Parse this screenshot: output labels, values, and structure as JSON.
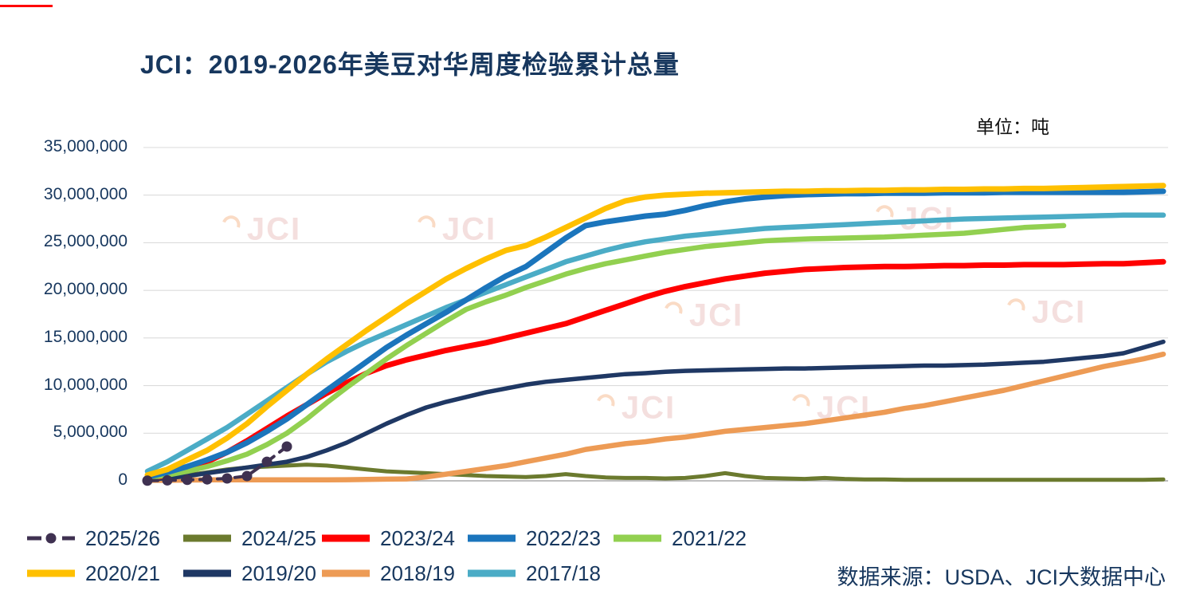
{
  "page": {
    "top_accent_color": "#FF0000"
  },
  "chart_data": {
    "type": "line",
    "title": "JCI：2019-2026年美豆对华周度检验累计总量",
    "unit_label": "单位：吨",
    "source_note": "数据来源：USDA、JCI大数据中心",
    "watermark_text": "JCI",
    "xlabel": "",
    "ylabel": "吨",
    "x_description": "marketing-year week index 1-52 (x tick labels not shown in image)",
    "xticks_visible": false,
    "ylim": [
      0,
      35000000
    ],
    "ytick_step": 5000000,
    "ytick_labels": [
      "0",
      "5,000,000",
      "10,000,000",
      "15,000,000",
      "20,000,000",
      "25,000,000",
      "30,000,000",
      "35,000,000"
    ],
    "grid": true,
    "legend_position": "bottom",
    "value_unit": "tons",
    "value_multiplier": 1000000,
    "legend_rows": [
      [
        "2025/26",
        "2024/25",
        "2023/24",
        "2022/23",
        "2021/22"
      ],
      [
        "2020/21",
        "2019/20",
        "2018/19",
        "2017/18"
      ]
    ],
    "draw_order": [
      "2024/25",
      "2018/19",
      "2019/20",
      "2023/24",
      "2021/22",
      "2017/18",
      "2022/23",
      "2020/21",
      "2025/26"
    ],
    "series": [
      {
        "name": "2025/26",
        "color": "#3F3151",
        "width": 4,
        "dash": true,
        "marker": true,
        "values": [
          0.02,
          0.05,
          0.1,
          0.15,
          0.25,
          0.5,
          2.0,
          3.6
        ]
      },
      {
        "name": "2024/25",
        "color": "#6B7A2E",
        "width": 5,
        "dash": false,
        "marker": false,
        "values": [
          0.1,
          0.3,
          0.6,
          0.9,
          1.2,
          1.4,
          1.5,
          1.6,
          1.7,
          1.6,
          1.4,
          1.2,
          1.0,
          0.9,
          0.8,
          0.7,
          0.6,
          0.5,
          0.45,
          0.4,
          0.5,
          0.7,
          0.5,
          0.35,
          0.3,
          0.3,
          0.25,
          0.3,
          0.5,
          0.8,
          0.5,
          0.3,
          0.25,
          0.2,
          0.3,
          0.2,
          0.15,
          0.15,
          0.1,
          0.1,
          0.1,
          0.1,
          0.1,
          0.1,
          0.1,
          0.1,
          0.1,
          0.1,
          0.1,
          0.1,
          0.1,
          0.15
        ]
      },
      {
        "name": "2023/24",
        "color": "#FF0000",
        "width": 7,
        "dash": false,
        "marker": false,
        "values": [
          0.2,
          0.6,
          1.2,
          2.0,
          3.0,
          4.2,
          5.5,
          6.8,
          8.0,
          9.2,
          10.3,
          11.3,
          12.1,
          12.7,
          13.2,
          13.7,
          14.1,
          14.5,
          15.0,
          15.5,
          16.0,
          16.5,
          17.2,
          17.9,
          18.6,
          19.3,
          19.9,
          20.4,
          20.8,
          21.2,
          21.5,
          21.8,
          22.0,
          22.2,
          22.3,
          22.4,
          22.45,
          22.5,
          22.5,
          22.55,
          22.6,
          22.6,
          22.65,
          22.65,
          22.7,
          22.7,
          22.7,
          22.75,
          22.8,
          22.8,
          22.9,
          23.0
        ]
      },
      {
        "name": "2022/23",
        "color": "#1B75BC",
        "width": 7,
        "dash": false,
        "marker": false,
        "values": [
          0.4,
          0.9,
          1.5,
          2.2,
          3.0,
          4.0,
          5.2,
          6.5,
          8.0,
          9.5,
          11.0,
          12.5,
          14.0,
          15.3,
          16.5,
          17.7,
          19.0,
          20.3,
          21.5,
          22.5,
          24.0,
          25.5,
          26.8,
          27.2,
          27.5,
          27.8,
          28.0,
          28.4,
          28.9,
          29.3,
          29.6,
          29.8,
          29.95,
          30.05,
          30.1,
          30.15,
          30.15,
          30.2,
          30.2,
          30.2,
          30.25,
          30.25,
          30.25,
          30.3,
          30.3,
          30.3,
          30.3,
          30.3,
          30.3,
          30.3,
          30.35,
          30.4
        ]
      },
      {
        "name": "2021/22",
        "color": "#92D050",
        "width": 6.5,
        "dash": false,
        "marker": false,
        "values": [
          0.3,
          0.6,
          1.0,
          1.5,
          2.1,
          2.8,
          3.8,
          5.0,
          6.5,
          8.2,
          9.8,
          11.3,
          12.8,
          14.2,
          15.5,
          16.8,
          18.0,
          18.8,
          19.5,
          20.3,
          21.0,
          21.7,
          22.3,
          22.8,
          23.2,
          23.6,
          24.0,
          24.3,
          24.6,
          24.8,
          25.0,
          25.2,
          25.3,
          25.4,
          25.45,
          25.5,
          25.55,
          25.6,
          25.7,
          25.8,
          25.9,
          26.0,
          26.2,
          26.4,
          26.6,
          26.7,
          26.8
        ]
      },
      {
        "name": "2020/21",
        "color": "#FFC000",
        "width": 7,
        "dash": false,
        "marker": false,
        "values": [
          0.6,
          1.2,
          2.2,
          3.2,
          4.5,
          6.0,
          7.8,
          9.5,
          11.2,
          12.8,
          14.3,
          15.8,
          17.2,
          18.6,
          19.9,
          21.2,
          22.3,
          23.3,
          24.2,
          24.7,
          25.6,
          26.6,
          27.6,
          28.6,
          29.4,
          29.8,
          30.0,
          30.1,
          30.2,
          30.25,
          30.3,
          30.35,
          30.4,
          30.4,
          30.45,
          30.45,
          30.5,
          30.5,
          30.55,
          30.55,
          30.6,
          30.6,
          30.65,
          30.65,
          30.7,
          30.7,
          30.75,
          30.8,
          30.85,
          30.9,
          30.95,
          31.0
        ]
      },
      {
        "name": "2019/20",
        "color": "#1F3864",
        "width": 5.5,
        "dash": false,
        "marker": false,
        "values": [
          0.1,
          0.3,
          0.5,
          0.8,
          1.1,
          1.4,
          1.7,
          2.0,
          2.5,
          3.2,
          4.0,
          5.0,
          6.0,
          6.9,
          7.7,
          8.3,
          8.8,
          9.3,
          9.7,
          10.1,
          10.4,
          10.6,
          10.8,
          11.0,
          11.2,
          11.3,
          11.45,
          11.55,
          11.6,
          11.65,
          11.7,
          11.75,
          11.8,
          11.8,
          11.85,
          11.9,
          11.95,
          12.0,
          12.05,
          12.1,
          12.1,
          12.15,
          12.2,
          12.3,
          12.4,
          12.5,
          12.7,
          12.9,
          13.1,
          13.4,
          14.0,
          14.6
        ]
      },
      {
        "name": "2018/19",
        "color": "#ED9B55",
        "width": 6.5,
        "dash": false,
        "marker": false,
        "values": [
          0.05,
          0.05,
          0.08,
          0.1,
          0.1,
          0.1,
          0.1,
          0.1,
          0.1,
          0.1,
          0.12,
          0.15,
          0.18,
          0.2,
          0.4,
          0.7,
          1.0,
          1.3,
          1.6,
          2.0,
          2.4,
          2.8,
          3.3,
          3.6,
          3.9,
          4.1,
          4.4,
          4.6,
          4.9,
          5.2,
          5.4,
          5.6,
          5.8,
          6.0,
          6.3,
          6.6,
          6.9,
          7.2,
          7.6,
          7.9,
          8.3,
          8.7,
          9.1,
          9.5,
          10.0,
          10.5,
          11.0,
          11.5,
          12.0,
          12.4,
          12.8,
          13.3
        ]
      },
      {
        "name": "2017/18",
        "color": "#4BACC6",
        "width": 6.5,
        "dash": false,
        "marker": false,
        "values": [
          1.0,
          2.0,
          3.2,
          4.4,
          5.6,
          7.0,
          8.4,
          9.8,
          11.2,
          12.5,
          13.6,
          14.6,
          15.5,
          16.4,
          17.3,
          18.2,
          19.0,
          19.8,
          20.6,
          21.4,
          22.2,
          23.0,
          23.6,
          24.2,
          24.7,
          25.1,
          25.4,
          25.7,
          25.9,
          26.1,
          26.3,
          26.5,
          26.6,
          26.7,
          26.8,
          26.9,
          27.0,
          27.1,
          27.2,
          27.3,
          27.4,
          27.5,
          27.55,
          27.6,
          27.65,
          27.7,
          27.75,
          27.8,
          27.85,
          27.9,
          27.9,
          27.9
        ]
      }
    ]
  }
}
